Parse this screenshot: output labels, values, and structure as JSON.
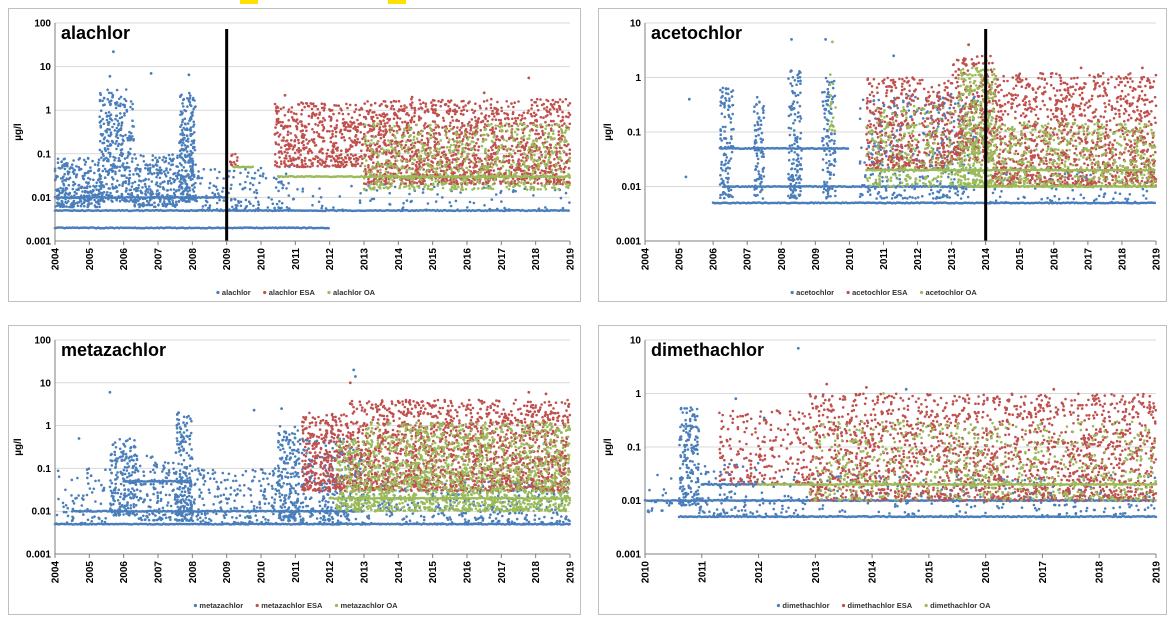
{
  "colors": {
    "parent": "#4a7ebb",
    "esa": "#c0504d",
    "oa": "#9bbb59",
    "marker": "#000000",
    "mark": "#ffe000"
  },
  "chart_data": [
    {
      "type": "scatter",
      "title": "alachlor",
      "ylabel": "µg/l",
      "yscale": "log",
      "ylim": [
        0.001,
        100
      ],
      "xlim": [
        2004,
        2019
      ],
      "x_ticks": [
        "2004",
        "2005",
        "2006",
        "2007",
        "2008",
        "2009",
        "2010",
        "2011",
        "2012",
        "2013",
        "2014",
        "2015",
        "2016",
        "2017",
        "2018",
        "2019"
      ],
      "y_ticks": [
        "0.001",
        "0.01",
        "0.1",
        "1",
        "10",
        "100"
      ],
      "grid": true,
      "legend_position": "bottom",
      "vline": 2009.0,
      "series": [
        {
          "name": "alachlor",
          "color": "#4a7ebb",
          "detection_limits": [
            {
              "y": 0.005,
              "x": [
                2004,
                2019
              ]
            },
            {
              "y": 0.002,
              "x": [
                2004,
                2012
              ]
            },
            {
              "y": 0.01,
              "x": [
                2004,
                2009
              ]
            }
          ],
          "segments": [
            {
              "x": [
                2004,
                2005.3
              ],
              "lo": 0.006,
              "hi": 0.08,
              "n": 260
            },
            {
              "x": [
                2005.3,
                2006.3
              ],
              "lo": 0.008,
              "hi": 3,
              "n": 340
            },
            {
              "x": [
                2006.3,
                2007.6
              ],
              "lo": 0.006,
              "hi": 0.1,
              "n": 240
            },
            {
              "x": [
                2007.6,
                2008.1
              ],
              "lo": 0.008,
              "hi": 2.5,
              "n": 260
            },
            {
              "x": [
                2008.1,
                2011
              ],
              "lo": 0.005,
              "hi": 0.05,
              "n": 140
            },
            {
              "x": [
                2011,
                2019
              ],
              "lo": 0.005,
              "hi": 0.02,
              "n": 90
            }
          ],
          "outliers": [
            [
              2005.7,
              22
            ],
            [
              2005.6,
              6
            ],
            [
              2006.8,
              7
            ],
            [
              2007.9,
              6.5
            ],
            [
              2005.8,
              1.5
            ]
          ]
        },
        {
          "name": "alachlor ESA",
          "color": "#c0504d",
          "segments": [
            {
              "x": [
                2009.1,
                2009.4
              ],
              "lo": 0.05,
              "hi": 0.1,
              "n": 12
            },
            {
              "x": [
                2010.4,
                2013
              ],
              "lo": 0.05,
              "hi": 1.5,
              "n": 480
            },
            {
              "x": [
                2013,
                2019
              ],
              "lo": 0.02,
              "hi": 1.8,
              "n": 1500
            }
          ],
          "outliers": [
            [
              2010.7,
              2.2
            ],
            [
              2017.8,
              5.5
            ],
            [
              2016.5,
              2.5
            ],
            [
              2014.4,
              2
            ]
          ]
        },
        {
          "name": "alachlor OA",
          "color": "#9bbb59",
          "detection_limits": [
            {
              "y": 0.03,
              "x": [
                2010.5,
                2019
              ]
            },
            {
              "y": 0.05,
              "x": [
                2009.2,
                2009.8
              ]
            }
          ],
          "segments": [
            {
              "x": [
                2013,
                2019
              ],
              "lo": 0.015,
              "hi": 0.5,
              "n": 700
            }
          ],
          "outliers": []
        }
      ]
    },
    {
      "type": "scatter",
      "title": "acetochlor",
      "ylabel": "µg/l",
      "yscale": "log",
      "ylim": [
        0.001,
        10
      ],
      "xlim": [
        2004,
        2019
      ],
      "x_ticks": [
        "2004",
        "2005",
        "2006",
        "2007",
        "2008",
        "2009",
        "2010",
        "2011",
        "2012",
        "2013",
        "2014",
        "2015",
        "2016",
        "2017",
        "2018",
        "2019"
      ],
      "y_ticks": [
        "0.001",
        "0.01",
        "0.1",
        "1",
        "10"
      ],
      "grid": true,
      "legend_position": "bottom",
      "vline": 2014.0,
      "series": [
        {
          "name": "acetochlor",
          "color": "#4a7ebb",
          "detection_limits": [
            {
              "y": 0.005,
              "x": [
                2006,
                2019
              ]
            },
            {
              "y": 0.01,
              "x": [
                2006.3,
                2014
              ]
            },
            {
              "y": 0.05,
              "x": [
                2006.2,
                2010
              ]
            }
          ],
          "segments": [
            {
              "x": [
                2006.2,
                2006.6
              ],
              "lo": 0.006,
              "hi": 0.8,
              "n": 110
            },
            {
              "x": [
                2007.2,
                2007.5
              ],
              "lo": 0.006,
              "hi": 0.5,
              "n": 90
            },
            {
              "x": [
                2008.2,
                2008.6
              ],
              "lo": 0.006,
              "hi": 1.5,
              "n": 150
            },
            {
              "x": [
                2009.2,
                2009.6
              ],
              "lo": 0.006,
              "hi": 1,
              "n": 110
            },
            {
              "x": [
                2010.3,
                2013.8
              ],
              "lo": 0.006,
              "hi": 0.5,
              "n": 330
            },
            {
              "x": [
                2014,
                2019
              ],
              "lo": 0.005,
              "hi": 0.02,
              "n": 70
            }
          ],
          "outliers": [
            [
              2005.3,
              0.4
            ],
            [
              2005.2,
              0.015
            ],
            [
              2008.3,
              5
            ],
            [
              2009.3,
              5
            ],
            [
              2011.3,
              2.5
            ]
          ]
        },
        {
          "name": "acetochlor ESA",
          "color": "#c0504d",
          "segments": [
            {
              "x": [
                2010.5,
                2013
              ],
              "lo": 0.02,
              "hi": 1,
              "n": 520
            },
            {
              "x": [
                2013,
                2014.2
              ],
              "lo": 0.03,
              "hi": 2.5,
              "n": 320
            },
            {
              "x": [
                2014.2,
                2019
              ],
              "lo": 0.01,
              "hi": 1.2,
              "n": 1200
            }
          ],
          "outliers": [
            [
              2013.5,
              4
            ],
            [
              2016.8,
              1.5
            ],
            [
              2018.6,
              1.5
            ]
          ]
        },
        {
          "name": "acetochlor OA",
          "color": "#9bbb59",
          "detection_limits": [
            {
              "y": 0.02,
              "x": [
                2010.5,
                2019
              ]
            },
            {
              "y": 0.01,
              "x": [
                2013.5,
                2019
              ]
            }
          ],
          "segments": [
            {
              "x": [
                2009.4,
                2009.6
              ],
              "lo": 0.1,
              "hi": 1.2,
              "n": 18
            },
            {
              "x": [
                2010.5,
                2013.2
              ],
              "lo": 0.01,
              "hi": 0.3,
              "n": 260
            },
            {
              "x": [
                2013.2,
                2014.3
              ],
              "lo": 0.01,
              "hi": 1.5,
              "n": 420
            },
            {
              "x": [
                2014.3,
                2019
              ],
              "lo": 0.01,
              "hi": 0.15,
              "n": 500
            }
          ],
          "outliers": [
            [
              2009.5,
              4.5
            ]
          ]
        }
      ]
    },
    {
      "type": "scatter",
      "title": "metazachlor",
      "ylabel": "µg/l",
      "yscale": "log",
      "ylim": [
        0.001,
        100
      ],
      "xlim": [
        2004,
        2019
      ],
      "x_ticks": [
        "2004",
        "2005",
        "2006",
        "2007",
        "2008",
        "2009",
        "2010",
        "2011",
        "2012",
        "2013",
        "2014",
        "2015",
        "2016",
        "2017",
        "2018",
        "2019"
      ],
      "y_ticks": [
        "0.001",
        "0.01",
        "0.1",
        "1",
        "10",
        "100"
      ],
      "grid": true,
      "legend_position": "bottom",
      "series": [
        {
          "name": "metazachlor",
          "color": "#4a7ebb",
          "detection_limits": [
            {
              "y": 0.005,
              "x": [
                2004,
                2019
              ]
            },
            {
              "y": 0.01,
              "x": [
                2004.5,
                2013
              ]
            },
            {
              "y": 0.05,
              "x": [
                2006,
                2008
              ]
            }
          ],
          "segments": [
            {
              "x": [
                2004,
                2005.5
              ],
              "lo": 0.005,
              "hi": 0.1,
              "n": 70
            },
            {
              "x": [
                2005.6,
                2006.4
              ],
              "lo": 0.008,
              "hi": 0.5,
              "n": 220
            },
            {
              "x": [
                2006.4,
                2007.5
              ],
              "lo": 0.006,
              "hi": 0.2,
              "n": 120
            },
            {
              "x": [
                2007.5,
                2008
              ],
              "lo": 0.006,
              "hi": 2,
              "n": 220
            },
            {
              "x": [
                2008,
                2010.5
              ],
              "lo": 0.005,
              "hi": 0.1,
              "n": 200
            },
            {
              "x": [
                2010.5,
                2011.1
              ],
              "lo": 0.006,
              "hi": 1,
              "n": 200
            },
            {
              "x": [
                2011.1,
                2013
              ],
              "lo": 0.005,
              "hi": 0.5,
              "n": 300
            },
            {
              "x": [
                2013,
                2019
              ],
              "lo": 0.005,
              "hi": 0.05,
              "n": 350
            }
          ],
          "outliers": [
            [
              2005.6,
              6
            ],
            [
              2007.6,
              2
            ],
            [
              2009.8,
              2.3
            ],
            [
              2010.6,
              2.5
            ],
            [
              2012.7,
              20
            ],
            [
              2012.75,
              14
            ],
            [
              2004.7,
              0.5
            ]
          ]
        },
        {
          "name": "metazachlor ESA",
          "color": "#c0504d",
          "segments": [
            {
              "x": [
                2011.2,
                2012.5
              ],
              "lo": 0.03,
              "hi": 2,
              "n": 320
            },
            {
              "x": [
                2012.5,
                2019
              ],
              "lo": 0.03,
              "hi": 4,
              "n": 1700
            }
          ],
          "outliers": [
            [
              2012.6,
              10
            ],
            [
              2017.8,
              6
            ],
            [
              2018.3,
              5.5
            ]
          ]
        },
        {
          "name": "metazachlor OA",
          "color": "#9bbb59",
          "detection_limits": [
            {
              "y": 0.02,
              "x": [
                2012,
                2019
              ]
            }
          ],
          "segments": [
            {
              "x": [
                2012.2,
                2013
              ],
              "lo": 0.01,
              "hi": 0.5,
              "n": 180
            },
            {
              "x": [
                2013,
                2019
              ],
              "lo": 0.01,
              "hi": 1.2,
              "n": 1500
            }
          ],
          "outliers": []
        }
      ]
    },
    {
      "type": "scatter",
      "title": "dimethachlor",
      "ylabel": "µg/l",
      "yscale": "log",
      "ylim": [
        0.001,
        10
      ],
      "xlim": [
        2010,
        2019
      ],
      "x_ticks": [
        "2010",
        "2011",
        "2012",
        "2013",
        "2014",
        "2015",
        "2016",
        "2017",
        "2018",
        "2019"
      ],
      "y_ticks": [
        "0.001",
        "0.01",
        "0.1",
        "1",
        "10"
      ],
      "grid": true,
      "legend_position": "bottom",
      "series": [
        {
          "name": "dimethachlor",
          "color": "#4a7ebb",
          "detection_limits": [
            {
              "y": 0.005,
              "x": [
                2010.6,
                2019
              ]
            },
            {
              "y": 0.01,
              "x": [
                2010,
                2019
              ]
            },
            {
              "y": 0.02,
              "x": [
                2011,
                2012
              ]
            }
          ],
          "segments": [
            {
              "x": [
                2010,
                2010.5
              ],
              "lo": 0.006,
              "hi": 0.03,
              "n": 20
            },
            {
              "x": [
                2010.6,
                2010.95
              ],
              "lo": 0.008,
              "hi": 0.6,
              "n": 180
            },
            {
              "x": [
                2010.95,
                2012
              ],
              "lo": 0.005,
              "hi": 0.05,
              "n": 90
            },
            {
              "x": [
                2012,
                2019
              ],
              "lo": 0.005,
              "hi": 0.03,
              "n": 260
            }
          ],
          "outliers": [
            [
              2012.7,
              7
            ],
            [
              2014.6,
              1.2
            ],
            [
              2011.6,
              0.8
            ],
            [
              2012.1,
              0.35
            ]
          ]
        },
        {
          "name": "dimethachlor ESA",
          "color": "#c0504d",
          "segments": [
            {
              "x": [
                2011.3,
                2012.9
              ],
              "lo": 0.02,
              "hi": 0.5,
              "n": 220
            },
            {
              "x": [
                2012.9,
                2019
              ],
              "lo": 0.01,
              "hi": 1,
              "n": 1900
            }
          ],
          "outliers": [
            [
              2013.2,
              1.5
            ],
            [
              2013.9,
              1.3
            ],
            [
              2017.2,
              1.2
            ],
            [
              2017.9,
              0.8
            ]
          ]
        },
        {
          "name": "dimethachlor OA",
          "color": "#9bbb59",
          "detection_limits": [
            {
              "y": 0.02,
              "x": [
                2012,
                2019
              ]
            }
          ],
          "segments": [
            {
              "x": [
                2012.9,
                2019
              ],
              "lo": 0.01,
              "hi": 0.3,
              "n": 700
            }
          ],
          "outliers": [
            [
              2014.2,
              1
            ]
          ]
        }
      ]
    }
  ]
}
